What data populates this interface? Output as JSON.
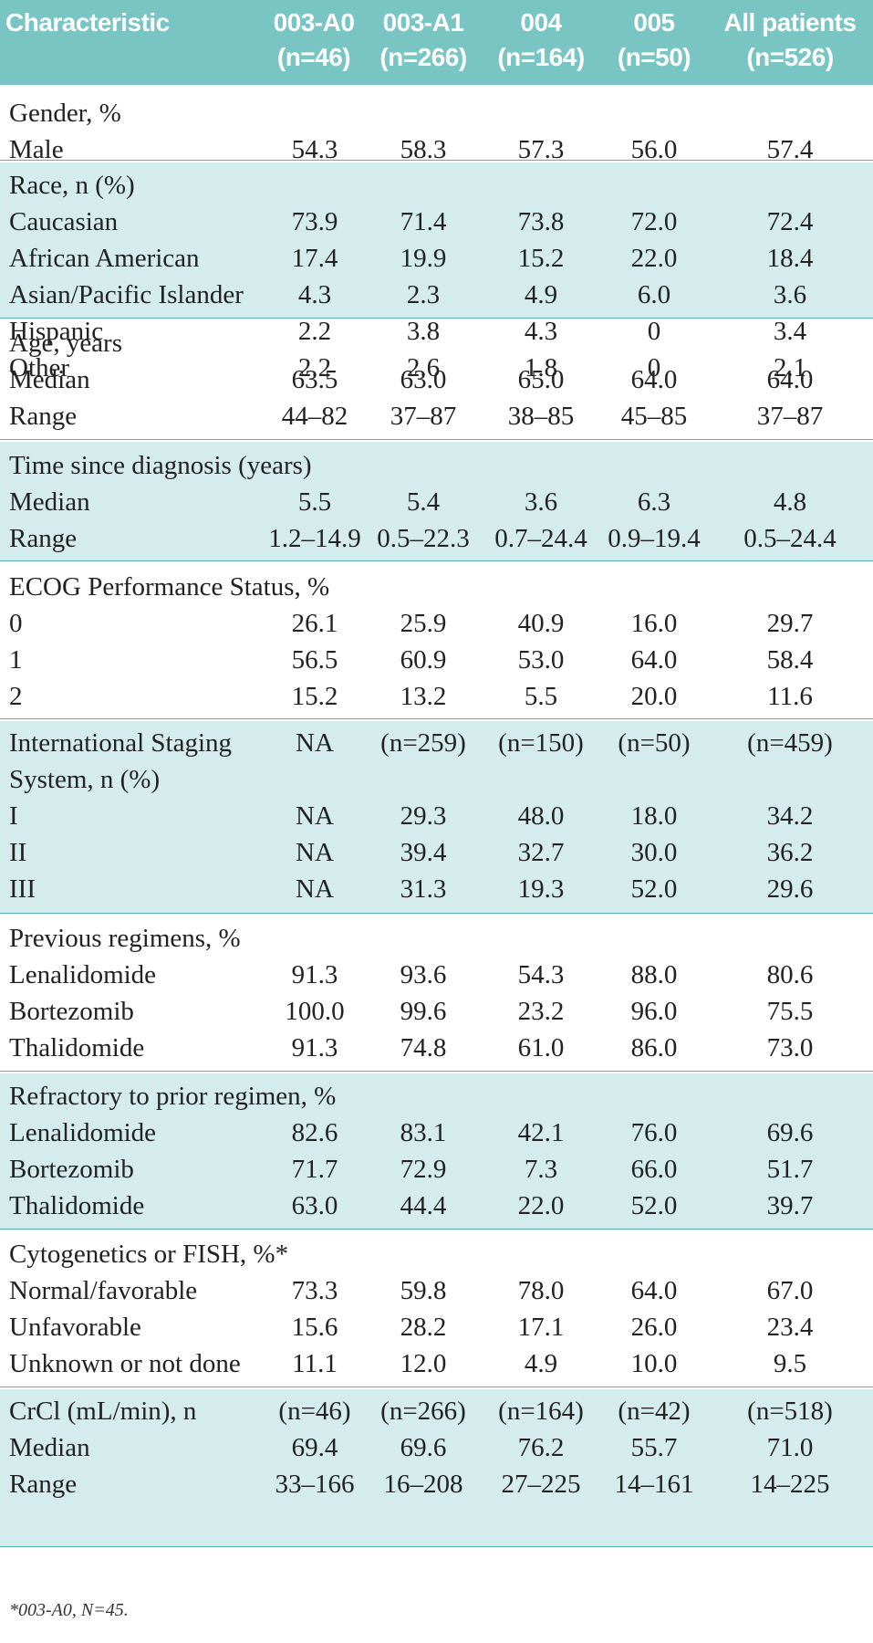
{
  "table": {
    "header": {
      "characteristic": "Characteristic",
      "columns": [
        {
          "name": "003-A0",
          "n": "(n=46)"
        },
        {
          "name": "003-A1",
          "n": "(n=266)"
        },
        {
          "name": "004",
          "n": "(n=164)"
        },
        {
          "name": "005",
          "n": "(n=50)"
        },
        {
          "name": "All patients",
          "n": "(n=526)"
        }
      ]
    },
    "sections": [
      {
        "shaded": false,
        "rows": [
          {
            "label": "Gender, %",
            "values": []
          },
          {
            "label": "Male",
            "values": [
              "54.3",
              "58.3",
              "57.3",
              "56.0",
              "57.4"
            ]
          }
        ]
      },
      {
        "shaded": true,
        "rows": [
          {
            "label": "Race, n (%)",
            "values": []
          },
          {
            "label": "Caucasian",
            "values": [
              "73.9",
              "71.4",
              "73.8",
              "72.0",
              "72.4"
            ]
          },
          {
            "label": "African American",
            "values": [
              "17.4",
              "19.9",
              "15.2",
              "22.0",
              "18.4"
            ]
          },
          {
            "label": "Asian/Pacific Islander",
            "values": [
              "4.3",
              "2.3",
              "4.9",
              "6.0",
              "3.6"
            ]
          },
          {
            "label": "Hispanic",
            "values": [
              "2.2",
              "3.8",
              "4.3",
              "0",
              "3.4"
            ]
          },
          {
            "label": "Other",
            "values": [
              "2.2",
              "2.6",
              "1.8",
              "0",
              "2.1"
            ]
          }
        ]
      },
      {
        "shaded": false,
        "rows": [
          {
            "label": "Age, years",
            "values": []
          },
          {
            "label": "Median",
            "values": [
              "63.5",
              "63.0",
              "65.0",
              "64.0",
              "64.0"
            ]
          },
          {
            "label": "Range",
            "values": [
              "44–82",
              "37–87",
              "38–85",
              "45–85",
              "37–87"
            ]
          }
        ]
      },
      {
        "shaded": true,
        "rows": [
          {
            "label": "Time since diagnosis (years)",
            "values": []
          },
          {
            "label": "Median",
            "values": [
              "5.5",
              "5.4",
              "3.6",
              "6.3",
              "4.8"
            ]
          },
          {
            "label": "Range",
            "values": [
              "1.2–14.9",
              "0.5–22.3",
              "0.7–24.4",
              "0.9–19.4",
              "0.5–24.4"
            ]
          }
        ]
      },
      {
        "shaded": false,
        "rows": [
          {
            "label": "ECOG Performance Status, %",
            "values": []
          },
          {
            "label": "0",
            "values": [
              "26.1",
              "25.9",
              "40.9",
              "16.0",
              "29.7"
            ]
          },
          {
            "label": "1",
            "values": [
              "56.5",
              "60.9",
              "53.0",
              "64.0",
              "58.4"
            ]
          },
          {
            "label": "2",
            "values": [
              "15.2",
              "13.2",
              "5.5",
              "20.0",
              "11.6"
            ]
          }
        ]
      },
      {
        "shaded": true,
        "rows": [
          {
            "label": "International Staging",
            "values": [
              "NA",
              "(n=259)",
              "(n=150)",
              "(n=50)",
              "(n=459)"
            ]
          },
          {
            "label": "System, n (%)",
            "values": []
          },
          {
            "label": "I",
            "values": [
              "NA",
              "29.3",
              "48.0",
              "18.0",
              "34.2"
            ]
          },
          {
            "label": "II",
            "values": [
              "NA",
              "39.4",
              "32.7",
              "30.0",
              "36.2"
            ]
          },
          {
            "label": "III",
            "values": [
              "NA",
              "31.3",
              "19.3",
              "52.0",
              "29.6"
            ]
          }
        ]
      },
      {
        "shaded": false,
        "rows": [
          {
            "label": "Previous regimens, %",
            "values": []
          },
          {
            "label": "Lenalidomide",
            "values": [
              "91.3",
              "93.6",
              "54.3",
              "88.0",
              "80.6"
            ]
          },
          {
            "label": "Bortezomib",
            "values": [
              "100.0",
              "99.6",
              "23.2",
              "96.0",
              "75.5"
            ]
          },
          {
            "label": "Thalidomide",
            "values": [
              "91.3",
              "74.8",
              "61.0",
              "86.0",
              "73.0"
            ]
          }
        ]
      },
      {
        "shaded": true,
        "rows": [
          {
            "label": "Refractory to prior regimen, %",
            "values": []
          },
          {
            "label": "Lenalidomide",
            "values": [
              "82.6",
              "83.1",
              "42.1",
              "76.0",
              "69.6"
            ]
          },
          {
            "label": "Bortezomib",
            "values": [
              "71.7",
              "72.9",
              "7.3",
              "66.0",
              "51.7"
            ]
          },
          {
            "label": "Thalidomide",
            "values": [
              "63.0",
              "44.4",
              "22.0",
              "52.0",
              "39.7"
            ]
          }
        ]
      },
      {
        "shaded": false,
        "rows": [
          {
            "label": "Cytogenetics or FISH, %*",
            "values": []
          },
          {
            "label": "Normal/favorable",
            "values": [
              "73.3",
              "59.8",
              "78.0",
              "64.0",
              "67.0"
            ]
          },
          {
            "label": "Unfavorable",
            "values": [
              "15.6",
              "28.2",
              "17.1",
              "26.0",
              "23.4"
            ]
          },
          {
            "label": "Unknown or not done",
            "values": [
              "11.1",
              "12.0",
              "4.9",
              "10.0",
              "9.5"
            ]
          }
        ]
      },
      {
        "shaded": true,
        "rows": [
          {
            "label": "CrCl (mL/min), n",
            "values": [
              "(n=46)",
              "(n=266)",
              "(n=164)",
              "(n=42)",
              "(n=518)"
            ]
          },
          {
            "label": "Median",
            "values": [
              "69.4",
              "69.6",
              "76.2",
              "55.7",
              "71.0"
            ]
          },
          {
            "label": "Range",
            "values": [
              "33–166",
              "16–208",
              "27–225",
              "14–161",
              "14–225"
            ]
          }
        ]
      }
    ],
    "footnote": "*003-A0, N=45."
  }
}
